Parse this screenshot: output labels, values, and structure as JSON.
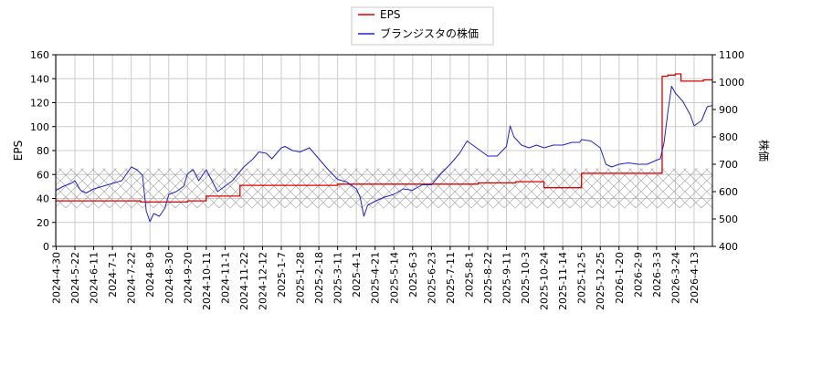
{
  "chart_data": {
    "type": "line",
    "legend": {
      "placement": "top-center",
      "entries": [
        "EPS",
        "ブランジスタの株価"
      ]
    },
    "grid": true,
    "band": {
      "axis": "right",
      "range": [
        540,
        685
      ],
      "pattern": "crosshatch"
    },
    "x_tick_labels": [
      "2024-4-30",
      "2024-5-22",
      "2024-6-11",
      "2024-7-1",
      "2024-7-22",
      "2024-8-9",
      "2024-8-30",
      "2024-9-20",
      "2024-10-11",
      "2024-11-1",
      "2024-11-22",
      "2024-12-12",
      "2025-1-7",
      "2025-1-28",
      "2025-2-18",
      "2025-3-11",
      "2025-4-1",
      "2025-4-21",
      "2025-5-14",
      "2025-6-3",
      "2025-6-23",
      "2025-7-11",
      "2025-8-1",
      "2025-8-22",
      "2025-9-11",
      "2025-10-3",
      "2025-10-24",
      "2025-11-14",
      "2025-12-5",
      "2025-12-25",
      "2026-1-20",
      "2026-2-9",
      "2026-3-3",
      "2026-3-24",
      "2026-4-13"
    ],
    "left_axis": {
      "label": "EPS",
      "ylim": [
        0,
        160
      ],
      "ticks": [
        0,
        20,
        40,
        60,
        80,
        100,
        120,
        140,
        160
      ]
    },
    "right_axis": {
      "label": "株価",
      "ylim": [
        400,
        1100
      ],
      "ticks": [
        400,
        500,
        600,
        700,
        800,
        900,
        1000,
        1100
      ]
    },
    "series": [
      {
        "name": "EPS",
        "axis": "left",
        "color": "#dd0000",
        "step": true,
        "points": [
          [
            0,
            38
          ],
          [
            2.5,
            38
          ],
          [
            4.5,
            37
          ],
          [
            7,
            38
          ],
          [
            8,
            42
          ],
          [
            9.6,
            42
          ],
          [
            9.8,
            51
          ],
          [
            14.5,
            51
          ],
          [
            15,
            52
          ],
          [
            22.5,
            53
          ],
          [
            24.5,
            54
          ],
          [
            25.8,
            54
          ],
          [
            26,
            49
          ],
          [
            27.8,
            49
          ],
          [
            28,
            61
          ],
          [
            32.2,
            61
          ],
          [
            32.3,
            142
          ],
          [
            32.6,
            143
          ],
          [
            33,
            144
          ],
          [
            33.3,
            138
          ],
          [
            34.5,
            139
          ],
          [
            35.2,
            139
          ]
        ]
      },
      {
        "name": "ブランジスタの株価",
        "axis": "right",
        "color": "#2222cc",
        "points": [
          [
            0,
            605
          ],
          [
            0.4,
            620
          ],
          [
            0.8,
            630
          ],
          [
            1,
            640
          ],
          [
            1.3,
            605
          ],
          [
            1.6,
            595
          ],
          [
            2,
            610
          ],
          [
            2.5,
            620
          ],
          [
            3,
            630
          ],
          [
            3.5,
            640
          ],
          [
            3.8,
            670
          ],
          [
            4,
            690
          ],
          [
            4.3,
            680
          ],
          [
            4.6,
            660
          ],
          [
            4.8,
            530
          ],
          [
            5,
            490
          ],
          [
            5.2,
            520
          ],
          [
            5.5,
            510
          ],
          [
            5.8,
            540
          ],
          [
            6,
            590
          ],
          [
            6.4,
            600
          ],
          [
            6.8,
            620
          ],
          [
            7,
            665
          ],
          [
            7.3,
            680
          ],
          [
            7.6,
            640
          ],
          [
            8,
            680
          ],
          [
            8.3,
            640
          ],
          [
            8.6,
            600
          ],
          [
            9,
            620
          ],
          [
            9.4,
            640
          ],
          [
            10,
            690
          ],
          [
            10.5,
            720
          ],
          [
            10.8,
            745
          ],
          [
            11.2,
            740
          ],
          [
            11.5,
            720
          ],
          [
            12,
            760
          ],
          [
            12.2,
            765
          ],
          [
            12.6,
            750
          ],
          [
            13,
            745
          ],
          [
            13.5,
            760
          ],
          [
            14,
            720
          ],
          [
            14.5,
            680
          ],
          [
            15,
            645
          ],
          [
            15.5,
            635
          ],
          [
            16,
            610
          ],
          [
            16.2,
            580
          ],
          [
            16.4,
            510
          ],
          [
            16.6,
            550
          ],
          [
            17,
            565
          ],
          [
            17.5,
            580
          ],
          [
            18,
            590
          ],
          [
            18.5,
            610
          ],
          [
            19,
            605
          ],
          [
            19.5,
            625
          ],
          [
            20,
            625
          ],
          [
            20.5,
            665
          ],
          [
            21,
            700
          ],
          [
            21.5,
            740
          ],
          [
            21.9,
            785
          ],
          [
            22.2,
            770
          ],
          [
            22.6,
            750
          ],
          [
            23,
            730
          ],
          [
            23.5,
            730
          ],
          [
            24,
            765
          ],
          [
            24.2,
            840
          ],
          [
            24.4,
            800
          ],
          [
            24.8,
            770
          ],
          [
            25.2,
            760
          ],
          [
            25.6,
            770
          ],
          [
            26,
            760
          ],
          [
            26.5,
            770
          ],
          [
            27,
            770
          ],
          [
            27.5,
            780
          ],
          [
            27.9,
            780
          ],
          [
            28,
            790
          ],
          [
            28.5,
            785
          ],
          [
            29,
            760
          ],
          [
            29.3,
            700
          ],
          [
            29.6,
            690
          ],
          [
            30,
            700
          ],
          [
            30.5,
            705
          ],
          [
            31,
            700
          ],
          [
            31.5,
            700
          ],
          [
            32,
            715
          ],
          [
            32.2,
            720
          ],
          [
            32.4,
            780
          ],
          [
            32.6,
            890
          ],
          [
            32.8,
            985
          ],
          [
            33,
            960
          ],
          [
            33.4,
            930
          ],
          [
            33.8,
            880
          ],
          [
            34,
            840
          ],
          [
            34.4,
            860
          ],
          [
            34.7,
            910
          ],
          [
            35,
            915
          ],
          [
            35.2,
            905
          ]
        ]
      }
    ]
  }
}
